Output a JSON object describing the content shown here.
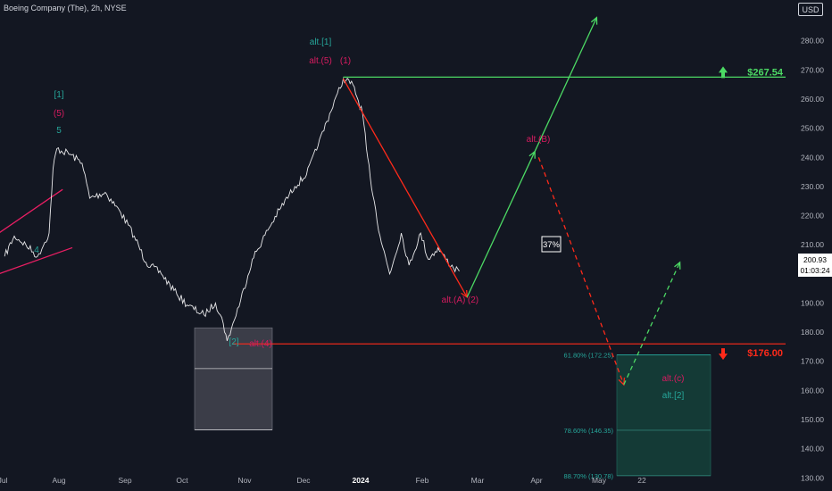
{
  "header": {
    "title": "Boeing Company (The), 2h, NYSE",
    "currency": "USD"
  },
  "price_tag": {
    "price": "200.93",
    "countdown": "01:03:24"
  },
  "colors": {
    "background": "#131722",
    "price_line": "#ffffff",
    "bull": "#4cd964",
    "bear": "#ff2a1a",
    "teal": "#26a69a",
    "magenta": "#d81b60",
    "text": "#d1d4dc"
  },
  "chart_data": {
    "type": "line",
    "title": "Boeing Company (The), 2h, NYSE",
    "xlabel": "",
    "ylabel": "",
    "ylim": [
      125.5,
      294
    ],
    "y_ticks": [
      "280.00",
      "270.00",
      "260.00",
      "250.00",
      "240.00",
      "230.00",
      "220.00",
      "210.00",
      "200.00",
      "190.00",
      "180.00",
      "170.00",
      "160.00",
      "150.00",
      "140.00",
      "130.00"
    ],
    "x_ticks": [
      "Jul",
      "Aug",
      "Sep",
      "Oct",
      "Nov",
      "Dec",
      "2024",
      "Feb",
      "Mar",
      "Apr",
      "May",
      "22"
    ],
    "grid": false,
    "series": [
      {
        "x": [
          "2023-07-01",
          "2023-07-06",
          "2023-07-12",
          "2023-07-18",
          "2023-07-24",
          "2023-07-26",
          "2023-07-28",
          "2023-08-04",
          "2023-08-10",
          "2023-08-14",
          "2023-08-22",
          "2023-08-30",
          "2023-09-06",
          "2023-09-12",
          "2023-09-20",
          "2023-09-28",
          "2023-10-04",
          "2023-10-12",
          "2023-10-18",
          "2023-10-22",
          "2023-10-24",
          "2023-10-27",
          "2023-10-31",
          "2023-11-06",
          "2023-11-14",
          "2023-11-20",
          "2023-11-28",
          "2023-12-04",
          "2023-12-10",
          "2023-12-16",
          "2023-12-20",
          "2023-12-23",
          "2023-12-28",
          "2024-01-02",
          "2024-01-04",
          "2024-01-06",
          "2024-01-08",
          "2024-01-11",
          "2024-01-16",
          "2024-01-22",
          "2024-01-26",
          "2024-02-01",
          "2024-02-05",
          "2024-02-10",
          "2024-02-14",
          "2024-02-18",
          "2024-02-21"
        ],
        "values": [
          206,
          213,
          210,
          206,
          214,
          236,
          243,
          241,
          238,
          226,
          228,
          221,
          213,
          204,
          200,
          193,
          189,
          186,
          190,
          183,
          177,
          183,
          191,
          205,
          215,
          222,
          230,
          234,
          244,
          255,
          262,
          267,
          265,
          255,
          243,
          233,
          225,
          213,
          200,
          214,
          203,
          214,
          205,
          209,
          205,
          202,
          200.93
        ]
      }
    ],
    "annotations": [
      {
        "text": "[1]",
        "color": "#26a69a"
      },
      {
        "text": "(5)",
        "color": "#d81b60"
      },
      {
        "text": "5",
        "color": "#26a69a"
      },
      {
        "text": "4",
        "color": "#26a69a"
      },
      {
        "text": "alt.[1]",
        "color": "#26a69a"
      },
      {
        "text": "alt.(5)",
        "color": "#d81b60"
      },
      {
        "text": "(1)",
        "color": "#d81b60"
      },
      {
        "text": "[2]",
        "color": "#26a69a"
      },
      {
        "text": "alt.(4)",
        "color": "#d81b60"
      },
      {
        "text": "alt.(A)",
        "color": "#d81b60"
      },
      {
        "text": "(2)",
        "color": "#d81b60"
      },
      {
        "text": "alt.(B)",
        "color": "#d81b60"
      },
      {
        "text": "alt.(c)",
        "color": "#d81b60"
      },
      {
        "text": "alt.[2]",
        "color": "#26a69a"
      }
    ],
    "levels": [
      {
        "label": "$267.54",
        "value": 267.54,
        "color": "#4cd964",
        "arrow": "up"
      },
      {
        "label": "$176.00",
        "value": 176.0,
        "color": "#ff2a1a",
        "arrow": "down"
      }
    ],
    "probability": "37%",
    "fib_levels": [
      {
        "label": "61.80% (172.25)",
        "value": 172.25
      },
      {
        "label": "78.60% (146.35)",
        "value": 146.35
      },
      {
        "label": "88.70% (130.78)",
        "value": 130.78
      }
    ],
    "boxes": [
      {
        "name": "grey-zone",
        "y_top": 181.5,
        "y_mid": 167.5,
        "y_bottom": 146.5,
        "color": "#9e9ea8"
      },
      {
        "name": "target-zone",
        "y_top": 172.25,
        "y_mid": 146.35,
        "y_bottom": 130.78,
        "color": "#1a4a44"
      }
    ],
    "wave_paths": [
      {
        "name": "bear-projection",
        "style": "solid",
        "color": "#ff2a1a",
        "points": [
          [
            "2023-12-23",
            267
          ],
          [
            "2024-02-25",
            192
          ]
        ]
      },
      {
        "name": "bull-projection",
        "style": "solid",
        "color": "#4cd964",
        "points": [
          [
            "2024-02-25",
            192
          ],
          [
            "2024-03-31",
            242
          ],
          [
            "2024-05-02",
            288
          ]
        ]
      },
      {
        "name": "bear-alt-projection",
        "style": "dashed",
        "color": "#ff2a1a",
        "points": [
          [
            "2024-04-02",
            240
          ],
          [
            "2024-05-16",
            162
          ]
        ]
      },
      {
        "name": "bull-alt-projection",
        "style": "dashed",
        "color": "#4cd964",
        "points": [
          [
            "2024-05-16",
            162
          ],
          [
            "2024-06-14",
            204
          ]
        ]
      }
    ],
    "channel": [
      {
        "points": [
          [
            "2023-06-28",
            214
          ],
          [
            "2023-07-31",
            229
          ]
        ]
      },
      {
        "points": [
          [
            "2023-06-28",
            200
          ],
          [
            "2023-08-05",
            209
          ]
        ]
      }
    ],
    "h_line": {
      "name": "resistance-line",
      "y": 267.54,
      "x_start": "2023-12-23"
    },
    "s_line": {
      "name": "support-line",
      "y": 176.0,
      "x_start": "2023-10-27"
    }
  }
}
